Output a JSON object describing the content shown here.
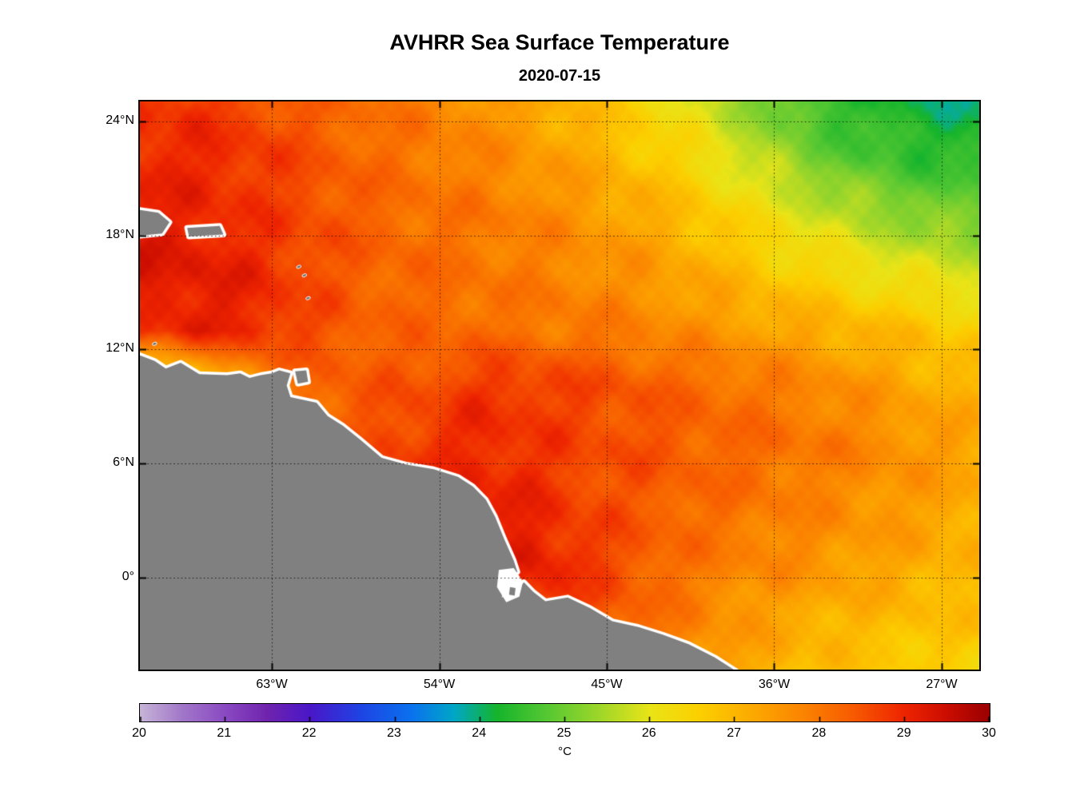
{
  "title": "AVHRR Sea Surface Temperature",
  "subtitle": "2020-07-15",
  "chart_data": {
    "type": "heatmap",
    "title": "AVHRR Sea Surface Temperature",
    "subtitle": "2020-07-15",
    "projection": "lon-lat",
    "lon_range": [
      -70.09,
      -24.98
    ],
    "lat_range": [
      -4.84,
      25.05
    ],
    "grid": true,
    "x_ticks": [
      {
        "value": -63,
        "label": "63°W"
      },
      {
        "value": -54,
        "label": "54°W"
      },
      {
        "value": -45,
        "label": "45°W"
      },
      {
        "value": -36,
        "label": "36°W"
      },
      {
        "value": -27,
        "label": "27°W"
      }
    ],
    "y_ticks": [
      {
        "value": 24,
        "label": "24°N"
      },
      {
        "value": 18,
        "label": "18°N"
      },
      {
        "value": 12,
        "label": "12°N"
      },
      {
        "value": 6,
        "label": "6°N"
      },
      {
        "value": 0,
        "label": "0°"
      }
    ],
    "colorbar": {
      "min": 20,
      "max": 30,
      "label": "°C",
      "ticks": [
        {
          "value": 20,
          "label": "20"
        },
        {
          "value": 21,
          "label": "21"
        },
        {
          "value": 22,
          "label": "22"
        },
        {
          "value": 23,
          "label": "23"
        },
        {
          "value": 24,
          "label": "24"
        },
        {
          "value": 25,
          "label": "25"
        },
        {
          "value": 26,
          "label": "26"
        },
        {
          "value": 27,
          "label": "27"
        },
        {
          "value": 28,
          "label": "28"
        },
        {
          "value": 29,
          "label": "29"
        },
        {
          "value": 30,
          "label": "30"
        }
      ],
      "stops": [
        [
          0.0,
          "#c6b4d6"
        ],
        [
          0.05,
          "#a176c9"
        ],
        [
          0.1,
          "#8a4ac2"
        ],
        [
          0.15,
          "#6f23ae"
        ],
        [
          0.2,
          "#4a17c8"
        ],
        [
          0.26,
          "#1e44e4"
        ],
        [
          0.32,
          "#0a72ee"
        ],
        [
          0.37,
          "#00a7c6"
        ],
        [
          0.42,
          "#16b42c"
        ],
        [
          0.48,
          "#57c832"
        ],
        [
          0.54,
          "#9dd62a"
        ],
        [
          0.6,
          "#e9e417"
        ],
        [
          0.66,
          "#fccf00"
        ],
        [
          0.72,
          "#fcaa00"
        ],
        [
          0.78,
          "#fb8400"
        ],
        [
          0.84,
          "#f75a00"
        ],
        [
          0.9,
          "#ee2400"
        ],
        [
          0.95,
          "#cb0d00"
        ],
        [
          1.0,
          "#9a0000"
        ]
      ]
    },
    "sst_grid": {
      "units": "degC",
      "lons": [
        -70,
        -67,
        -64,
        -61,
        -58,
        -55,
        -52,
        -49,
        -46,
        -43,
        -40,
        -37,
        -34,
        -31,
        -28,
        -25
      ],
      "lats": [
        25,
        22,
        19,
        16,
        13,
        10,
        7,
        4,
        1,
        -2,
        -5
      ],
      "values": [
        [
          28.8,
          28.8,
          28.6,
          28.3,
          28.1,
          27.9,
          27.6,
          27.3,
          26.9,
          26.4,
          25.9,
          25.2,
          24.6,
          24.3,
          24.1,
          24.0
        ],
        [
          29.0,
          29.0,
          28.8,
          28.5,
          28.2,
          28.0,
          27.8,
          27.5,
          27.2,
          26.8,
          26.3,
          25.7,
          25.1,
          24.7,
          24.5,
          24.4
        ],
        [
          29.1,
          29.0,
          28.8,
          28.6,
          28.3,
          28.1,
          28.0,
          27.8,
          27.5,
          27.2,
          26.8,
          26.3,
          25.9,
          25.5,
          25.2,
          25.0
        ],
        [
          29.3,
          29.2,
          29.0,
          28.6,
          28.3,
          28.2,
          28.0,
          27.9,
          27.7,
          27.5,
          27.2,
          26.8,
          26.5,
          26.2,
          26.0,
          25.8
        ],
        [
          28.8,
          29.1,
          29.0,
          28.6,
          28.3,
          28.2,
          28.2,
          28.0,
          28.0,
          27.8,
          27.6,
          27.4,
          27.2,
          27.0,
          26.8,
          26.6
        ],
        [
          25.9,
          26.2,
          27.4,
          28.2,
          28.4,
          28.5,
          28.8,
          28.8,
          28.6,
          28.4,
          28.2,
          28.0,
          27.8,
          27.5,
          27.2,
          27.0
        ],
        [
          27.0,
          27.5,
          28.0,
          28.3,
          28.5,
          28.8,
          29.0,
          28.8,
          28.6,
          28.5,
          28.3,
          28.2,
          28.0,
          27.8,
          27.5,
          27.3
        ],
        [
          28.0,
          28.0,
          28.2,
          28.4,
          28.6,
          28.8,
          29.0,
          29.0,
          28.6,
          28.4,
          28.2,
          28.0,
          27.8,
          27.6,
          27.4,
          27.2
        ],
        [
          28.5,
          28.5,
          28.5,
          28.5,
          28.6,
          28.8,
          29.0,
          29.2,
          28.8,
          28.4,
          28.0,
          27.8,
          27.6,
          27.4,
          27.2,
          27.0
        ],
        [
          28.5,
          28.5,
          28.5,
          28.5,
          28.5,
          28.5,
          28.6,
          28.8,
          28.6,
          28.2,
          27.8,
          27.4,
          27.2,
          27.0,
          26.9,
          26.8
        ],
        [
          28.0,
          28.0,
          28.0,
          28.0,
          28.0,
          28.0,
          28.2,
          28.4,
          28.4,
          28.0,
          27.6,
          27.2,
          26.9,
          26.7,
          26.6,
          26.5
        ]
      ]
    },
    "land": {
      "color": "#808080",
      "fringe_color": "#ffffff",
      "mainland": [
        [
          -71.0,
          11.7
        ],
        [
          -70.1,
          11.7
        ],
        [
          -69.3,
          11.4
        ],
        [
          -68.7,
          11.0
        ],
        [
          -67.9,
          11.3
        ],
        [
          -66.9,
          10.7
        ],
        [
          -65.4,
          10.65
        ],
        [
          -64.7,
          10.75
        ],
        [
          -64.2,
          10.5
        ],
        [
          -63.6,
          10.65
        ],
        [
          -63.0,
          10.75
        ],
        [
          -62.6,
          10.9
        ],
        [
          -62.0,
          10.75
        ],
        [
          -62.2,
          10.1
        ],
        [
          -62.0,
          9.5
        ],
        [
          -60.6,
          9.2
        ],
        [
          -60.0,
          8.5
        ],
        [
          -59.2,
          8.0
        ],
        [
          -58.3,
          7.3
        ],
        [
          -57.1,
          6.3
        ],
        [
          -55.8,
          5.95
        ],
        [
          -54.3,
          5.7
        ],
        [
          -53.0,
          5.3
        ],
        [
          -52.2,
          4.8
        ],
        [
          -51.5,
          4.1
        ],
        [
          -51.0,
          3.2
        ],
        [
          -50.5,
          2.0
        ],
        [
          -50.0,
          0.9
        ],
        [
          -49.8,
          0.3
        ],
        [
          -50.35,
          -0.1
        ],
        [
          -50.65,
          -1.05
        ],
        [
          -49.95,
          -0.8
        ],
        [
          -49.45,
          -0.25
        ],
        [
          -48.95,
          -0.75
        ],
        [
          -48.3,
          -1.25
        ],
        [
          -47.1,
          -1.05
        ],
        [
          -45.9,
          -1.6
        ],
        [
          -44.7,
          -2.3
        ],
        [
          -43.3,
          -2.6
        ],
        [
          -42.0,
          -3.0
        ],
        [
          -40.6,
          -3.5
        ],
        [
          -39.2,
          -4.2
        ],
        [
          -37.6,
          -5.2
        ],
        [
          -71.0,
          -5.2
        ]
      ],
      "islands": [
        [
          [
            -70.5,
            19.4
          ],
          [
            -69.1,
            19.2
          ],
          [
            -68.5,
            18.7
          ],
          [
            -68.9,
            18.1
          ],
          [
            -70.5,
            17.95
          ]
        ],
        [
          [
            -67.55,
            18.4
          ],
          [
            -65.8,
            18.5
          ],
          [
            -65.6,
            18.05
          ],
          [
            -67.45,
            17.95
          ]
        ],
        [
          [
            -61.75,
            10.85
          ],
          [
            -61.15,
            10.9
          ],
          [
            -61.05,
            10.3
          ],
          [
            -61.6,
            10.2
          ]
        ]
      ],
      "estuary": [
        [
          -50.8,
          0.4
        ],
        [
          -50.0,
          0.5
        ],
        [
          -49.5,
          -0.2
        ],
        [
          -49.7,
          -1.0
        ],
        [
          -50.4,
          -1.3
        ],
        [
          -50.9,
          -0.5
        ]
      ],
      "estuary_island": [
        [
          -50.2,
          -0.5
        ],
        [
          -49.9,
          -0.55
        ],
        [
          -49.95,
          -0.95
        ],
        [
          -50.25,
          -0.9
        ]
      ],
      "island_dots": [
        [
          -61.55,
          16.35
        ],
        [
          -61.25,
          15.9
        ],
        [
          -61.05,
          14.7
        ],
        [
          -69.3,
          12.3
        ]
      ]
    }
  }
}
